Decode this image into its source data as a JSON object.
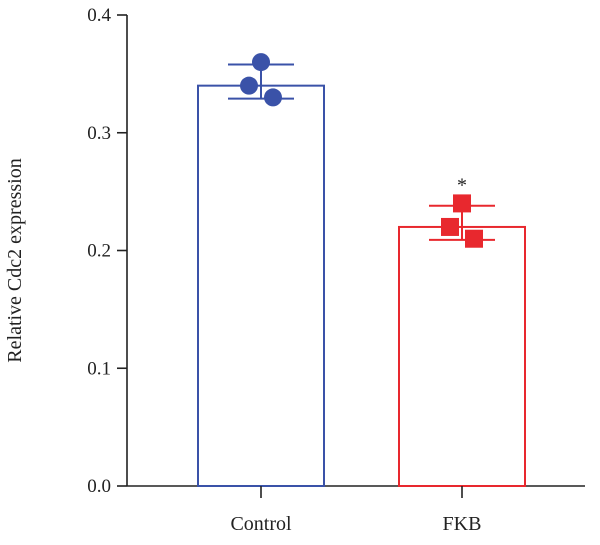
{
  "chart_data": {
    "type": "bar",
    "ylabel": "Relative Cdc2 expression",
    "ylim": [
      0,
      0.4
    ],
    "yticks": [
      "0.0",
      "0.1",
      "0.2",
      "0.3",
      "0.4"
    ],
    "grid": false,
    "categories": [
      "Control",
      "FKB"
    ],
    "values": [
      0.34,
      0.22
    ],
    "error_low": [
      0.329,
      0.209
    ],
    "error_high": [
      0.358,
      0.238
    ],
    "colors": [
      "#3a52a8",
      "#e8282e"
    ],
    "markers": [
      "circle",
      "square"
    ],
    "points": [
      [
        0.36,
        0.34,
        0.33
      ],
      [
        0.24,
        0.22,
        0.21
      ]
    ],
    "significance": [
      "",
      "*"
    ]
  }
}
